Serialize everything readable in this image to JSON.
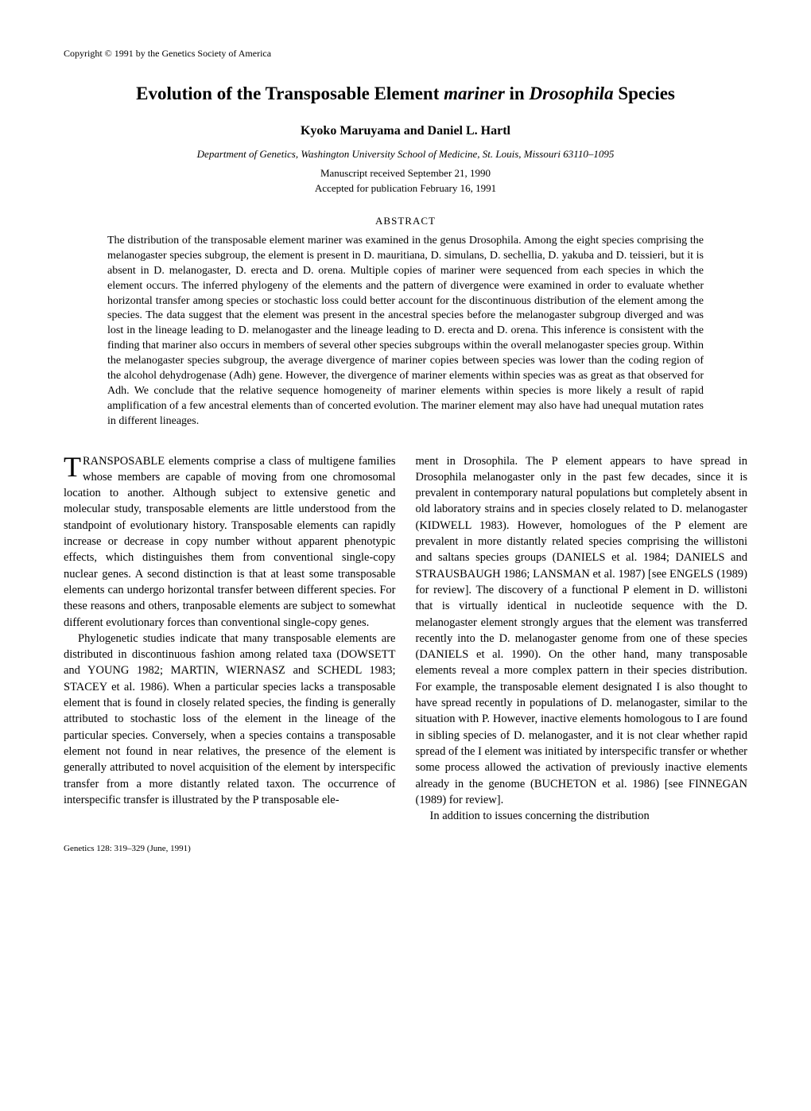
{
  "copyright": "Copyright © 1991 by the Genetics Society of America",
  "title_parts": {
    "prefix": "Evolution of the Transposable Element ",
    "italic1": "mariner",
    "mid": " in ",
    "italic2": "Drosophila",
    "suffix": " Species"
  },
  "authors": "Kyoko Maruyama and Daniel L. Hartl",
  "affiliation": "Department of Genetics, Washington University School of Medicine, St. Louis, Missouri 63110–1095",
  "date_received": "Manuscript received September 21, 1990",
  "date_accepted": "Accepted for publication February 16, 1991",
  "abstract_heading": "ABSTRACT",
  "abstract_text": "The distribution of the transposable element mariner was examined in the genus Drosophila. Among the eight species comprising the melanogaster species subgroup, the element is present in D. mauritiana, D. simulans, D. sechellia, D. yakuba and D. teissieri, but it is absent in D. melanogaster, D. erecta and D. orena. Multiple copies of mariner were sequenced from each species in which the element occurs. The inferred phylogeny of the elements and the pattern of divergence were examined in order to evaluate whether horizontal transfer among species or stochastic loss could better account for the discontinuous distribution of the element among the species. The data suggest that the element was present in the ancestral species before the melanogaster subgroup diverged and was lost in the lineage leading to D. melanogaster and the lineage leading to D. erecta and D. orena. This inference is consistent with the finding that mariner also occurs in members of several other species subgroups within the overall melanogaster species group. Within the melanogaster species subgroup, the average divergence of mariner copies between species was lower than the coding region of the alcohol dehydrogenase (Adh) gene. However, the divergence of mariner elements within species was as great as that observed for Adh. We conclude that the relative sequence homogeneity of mariner elements within species is more likely a result of rapid amplification of a few ancestral elements than of concerted evolution. The mariner element may also have had unequal mutation rates in different lineages.",
  "col1_p1_dropcap": "T",
  "col1_p1": "RANSPOSABLE elements comprise a class of multigene families whose members are capable of moving from one chromosomal location to another. Although subject to extensive genetic and molecular study, transposable elements are little understood from the standpoint of evolutionary history. Transposable elements can rapidly increase or decrease in copy number without apparent phenotypic effects, which distinguishes them from conventional single-copy nuclear genes. A second distinction is that at least some transposable elements can undergo horizontal transfer between different species. For these reasons and others, tranposable elements are subject to somewhat different evolutionary forces than conventional single-copy genes.",
  "col1_p2": "Phylogenetic studies indicate that many transposable elements are distributed in discontinuous fashion among related taxa (DOWSETT and YOUNG 1982; MARTIN, WIERNASZ and SCHEDL 1983; STACEY et al. 1986). When a particular species lacks a transposable element that is found in closely related species, the finding is generally attributed to stochastic loss of the element in the lineage of the particular species. Conversely, when a species contains a transposable element not found in near relatives, the presence of the element is generally attributed to novel acquisition of the element by interspecific transfer from a more distantly related taxon. The occurrence of interspecific transfer is illustrated by the P transposable ele-",
  "col2_p1": "ment in Drosophila. The P element appears to have spread in Drosophila melanogaster only in the past few decades, since it is prevalent in contemporary natural populations but completely absent in old laboratory strains and in species closely related to D. melanogaster (KIDWELL 1983). However, homologues of the P element are prevalent in more distantly related species comprising the willistoni and saltans species groups (DANIELS et al. 1984; DANIELS and STRAUSBAUGH 1986; LANSMAN et al. 1987) [see ENGELS (1989) for review]. The discovery of a functional P element in D. willistoni that is virtually identical in nucleotide sequence with the D. melanogaster element strongly argues that the element was transferred recently into the D. melanogaster genome from one of these species (DANIELS et al. 1990). On the other hand, many transposable elements reveal a more complex pattern in their species distribution. For example, the transposable element designated I is also thought to have spread recently in populations of D. melanogaster, similar to the situation with P. However, inactive elements homologous to I are found in sibling species of D. melanogaster, and it is not clear whether rapid spread of the I element was initiated by interspecific transfer or whether some process allowed the activation of previously inactive elements already in the genome (BUCHETON et al. 1986) [see FINNEGAN (1989) for review].",
  "col2_p2": "In addition to issues concerning the distribution",
  "footer": "Genetics 128: 319–329 (June, 1991)"
}
